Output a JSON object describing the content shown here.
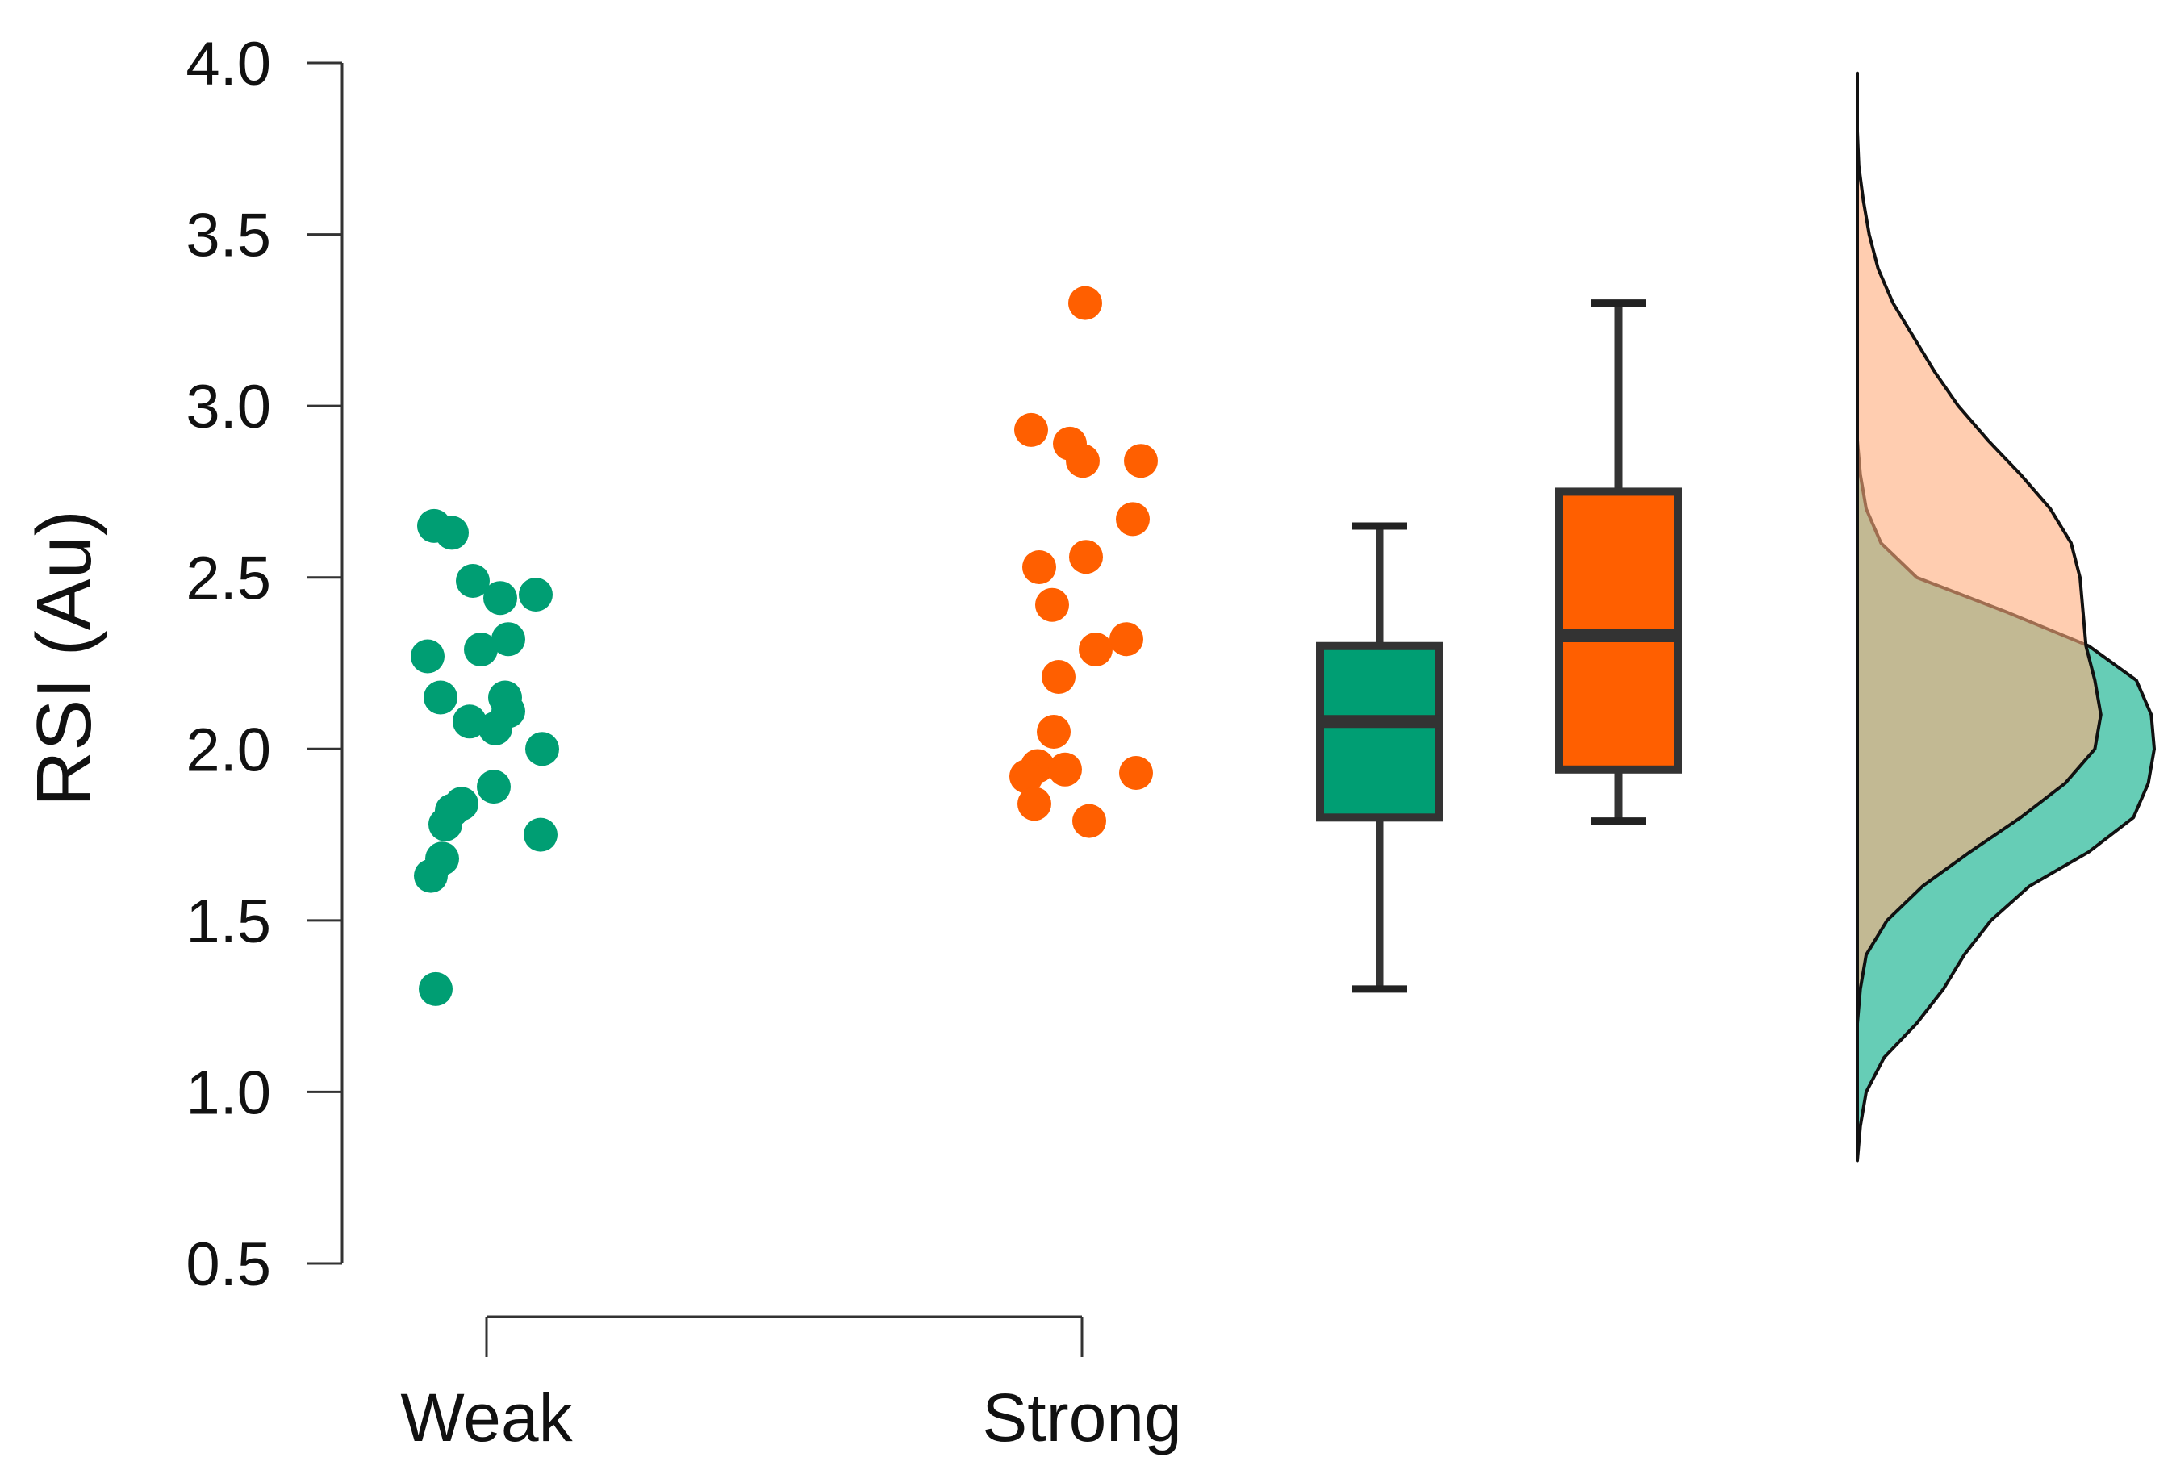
{
  "chart_data": {
    "type": "raincloud",
    "ylabel": "RSI (Au)",
    "xlabel": "",
    "title": "",
    "ylim": [
      0.5,
      4.0
    ],
    "yticks": [
      "4.0",
      "3.5",
      "3.0",
      "2.5",
      "2.0",
      "1.5",
      "1.0",
      "0.5"
    ],
    "categories": [
      "Weak",
      "Strong"
    ],
    "grid": false,
    "legend": "none",
    "series": [
      {
        "category": "Weak",
        "color": "#009E73",
        "density_color": "#66CDB6",
        "points": [
          2.65,
          2.63,
          2.49,
          2.45,
          2.44,
          2.32,
          2.29,
          2.27,
          2.15,
          2.15,
          2.11,
          2.08,
          2.06,
          2.0,
          1.89,
          1.84,
          1.82,
          1.78,
          1.75,
          1.68,
          1.63,
          1.3
        ],
        "box": {
          "min": 1.3,
          "q1": 1.8,
          "median": 2.08,
          "q3": 2.3,
          "max": 2.65
        },
        "density": [
          [
            0.8,
            0
          ],
          [
            0.9,
            0.01
          ],
          [
            1.0,
            0.03
          ],
          [
            1.1,
            0.09
          ],
          [
            1.2,
            0.2
          ],
          [
            1.3,
            0.29
          ],
          [
            1.4,
            0.36
          ],
          [
            1.5,
            0.45
          ],
          [
            1.6,
            0.58
          ],
          [
            1.7,
            0.78
          ],
          [
            1.8,
            0.93
          ],
          [
            1.9,
            0.98
          ],
          [
            2.0,
            1.0
          ],
          [
            2.1,
            0.99
          ],
          [
            2.2,
            0.94
          ],
          [
            2.3,
            0.78
          ],
          [
            2.4,
            0.5
          ],
          [
            2.5,
            0.2
          ],
          [
            2.6,
            0.08
          ],
          [
            2.7,
            0.03
          ],
          [
            2.8,
            0.01
          ],
          [
            2.9,
            0
          ]
        ]
      },
      {
        "category": "Strong",
        "color": "#FF5F00",
        "density_color": "#FFAC7C",
        "points": [
          3.3,
          2.93,
          2.89,
          2.84,
          2.84,
          2.67,
          2.56,
          2.53,
          2.42,
          2.32,
          2.29,
          2.21,
          2.05,
          1.95,
          1.94,
          1.93,
          1.92,
          1.84,
          1.79
        ],
        "box": {
          "min": 1.79,
          "q1": 1.94,
          "median": 2.33,
          "q3": 2.75,
          "max": 3.3
        },
        "density": [
          [
            1.2,
            0
          ],
          [
            1.3,
            0.01
          ],
          [
            1.4,
            0.03
          ],
          [
            1.5,
            0.1
          ],
          [
            1.6,
            0.22
          ],
          [
            1.7,
            0.38
          ],
          [
            1.8,
            0.55
          ],
          [
            1.9,
            0.7
          ],
          [
            2.0,
            0.8
          ],
          [
            2.1,
            0.82
          ],
          [
            2.2,
            0.8
          ],
          [
            2.3,
            0.77
          ],
          [
            2.4,
            0.76
          ],
          [
            2.5,
            0.75
          ],
          [
            2.6,
            0.72
          ],
          [
            2.7,
            0.65
          ],
          [
            2.8,
            0.55
          ],
          [
            2.9,
            0.44
          ],
          [
            3.0,
            0.34
          ],
          [
            3.1,
            0.26
          ],
          [
            3.2,
            0.19
          ],
          [
            3.3,
            0.12
          ],
          [
            3.4,
            0.07
          ],
          [
            3.5,
            0.04
          ],
          [
            3.6,
            0.02
          ],
          [
            3.7,
            0.005
          ],
          [
            3.8,
            0
          ],
          [
            3.97,
            0
          ]
        ]
      }
    ]
  }
}
